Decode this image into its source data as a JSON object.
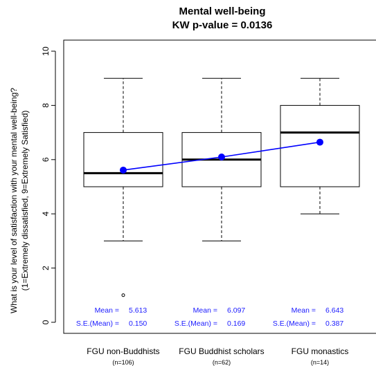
{
  "chart_data": {
    "type": "box",
    "title": "Mental well-being",
    "subtitle": "KW p-value = 0.0136",
    "ylabel_line1": "What is your level of satisfaction with your mental well-being?",
    "ylabel_line2": "(1=Extremely dissatisfied, 9=Extremely Satisfied)",
    "ylim": [
      0,
      10
    ],
    "yticks": [
      0,
      2,
      4,
      6,
      8,
      10
    ],
    "mean_line_color": "#0000ff",
    "stat_color": "#1a1aff",
    "mean_label": "Mean =",
    "se_label": "S.E.(Mean) =",
    "groups": [
      {
        "name": "FGU non-Buddhists",
        "n_label": "(n=106)",
        "whisker_low": 3,
        "q1": 5,
        "median": 5.5,
        "q3": 7,
        "whisker_high": 9,
        "outliers": [
          1
        ],
        "mean": 5.613,
        "mean_text": "5.613",
        "se_text": "0.150"
      },
      {
        "name": "FGU Buddhist scholars",
        "n_label": "(n=62)",
        "whisker_low": 3,
        "q1": 5,
        "median": 6,
        "q3": 7,
        "whisker_high": 9,
        "outliers": [],
        "mean": 6.097,
        "mean_text": "6.097",
        "se_text": "0.169"
      },
      {
        "name": "FGU monastics",
        "n_label": "(n=14)",
        "whisker_low": 4,
        "q1": 5,
        "median": 7,
        "q3": 8,
        "whisker_high": 9,
        "outliers": [],
        "mean": 6.643,
        "mean_text": "6.643",
        "se_text": "0.387"
      }
    ]
  }
}
